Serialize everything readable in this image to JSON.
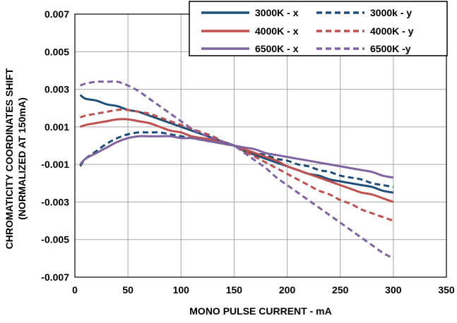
{
  "chart_data": {
    "type": "line",
    "xlabel": "MONO PULSE CURRENT - mA",
    "ylabel_line1": "CHROMATICITY COORDINATES SHIFT",
    "ylabel_line2": "(NORMALIZED AT 150mA)",
    "xlim": [
      0,
      350
    ],
    "ylim": [
      -0.007,
      0.007
    ],
    "x_ticks": [
      0,
      50,
      100,
      150,
      200,
      250,
      300,
      350
    ],
    "x_tick_labels": [
      "0",
      "50",
      "100",
      "150",
      "200",
      "250",
      "300",
      "350"
    ],
    "y_ticks": [
      -0.007,
      -0.005,
      -0.003,
      -0.001,
      0.001,
      0.003,
      0.005,
      0.007
    ],
    "y_tick_labels": [
      "-0.007",
      "-0.005",
      "-0.003",
      "-0.001",
      "0.001",
      "0.003",
      "0.005",
      "0.007"
    ],
    "grid": true,
    "legend_position": "top-right",
    "series": [
      {
        "name": "3000K - x",
        "color": "#1f4e79",
        "dash": "solid",
        "x": [
          5,
          10,
          20,
          30,
          40,
          50,
          60,
          70,
          80,
          90,
          100,
          110,
          120,
          130,
          140,
          150,
          160,
          170,
          180,
          190,
          200,
          210,
          220,
          230,
          240,
          250,
          260,
          270,
          280,
          290,
          300
        ],
        "y": [
          0.0027,
          0.0025,
          0.0024,
          0.0022,
          0.0021,
          0.0019,
          0.0018,
          0.0016,
          0.0014,
          0.0012,
          0.001,
          0.0008,
          0.0006,
          0.0004,
          0.0002,
          0.0,
          -0.0003,
          -0.0005,
          -0.0007,
          -0.0009,
          -0.0011,
          -0.0013,
          -0.0015,
          -0.0016,
          -0.0018,
          -0.0019,
          -0.002,
          -0.0021,
          -0.0022,
          -0.0024,
          -0.0025
        ]
      },
      {
        "name": "3000k - y",
        "color": "#1f4e79",
        "dash": "dashed",
        "x": [
          5,
          10,
          20,
          30,
          40,
          50,
          60,
          70,
          80,
          90,
          100,
          110,
          120,
          130,
          140,
          150,
          160,
          170,
          180,
          190,
          200,
          210,
          220,
          230,
          240,
          250,
          260,
          270,
          280,
          290,
          300
        ],
        "y": [
          -0.0011,
          -0.0007,
          -0.0003,
          0.0001,
          0.0004,
          0.0006,
          0.0007,
          0.0007,
          0.0007,
          0.0006,
          0.0005,
          0.0004,
          0.0003,
          0.0002,
          0.0001,
          0.0,
          -0.0002,
          -0.0004,
          -0.0005,
          -0.0007,
          -0.0008,
          -0.001,
          -0.0011,
          -0.0013,
          -0.0014,
          -0.0016,
          -0.0017,
          -0.0018,
          -0.002,
          -0.0021,
          -0.0022
        ]
      },
      {
        "name": "4000K - x",
        "color": "#c0504d",
        "dash": "solid",
        "x": [
          5,
          10,
          20,
          30,
          40,
          50,
          60,
          70,
          80,
          90,
          100,
          110,
          120,
          130,
          140,
          150,
          160,
          170,
          180,
          190,
          200,
          210,
          220,
          230,
          240,
          250,
          260,
          270,
          280,
          290,
          300
        ],
        "y": [
          0.001,
          0.0011,
          0.0012,
          0.0013,
          0.0014,
          0.0014,
          0.0013,
          0.0012,
          0.001,
          0.0008,
          0.0007,
          0.0005,
          0.0004,
          0.0003,
          0.0001,
          0.0,
          -0.0002,
          -0.0004,
          -0.0006,
          -0.0008,
          -0.0011,
          -0.0013,
          -0.0015,
          -0.0017,
          -0.0019,
          -0.0021,
          -0.0023,
          -0.0025,
          -0.0026,
          -0.0028,
          -0.003
        ]
      },
      {
        "name": "4000K - y",
        "color": "#c0504d",
        "dash": "dashed",
        "x": [
          5,
          10,
          20,
          30,
          40,
          50,
          60,
          70,
          80,
          90,
          100,
          110,
          120,
          130,
          140,
          150,
          160,
          170,
          180,
          190,
          200,
          210,
          220,
          230,
          240,
          250,
          260,
          270,
          280,
          290,
          300
        ],
        "y": [
          0.0015,
          0.0016,
          0.0017,
          0.0018,
          0.0019,
          0.0019,
          0.0018,
          0.0017,
          0.0015,
          0.0013,
          0.0011,
          0.0009,
          0.0007,
          0.0005,
          0.0002,
          0.0,
          -0.0003,
          -0.0006,
          -0.0009,
          -0.0012,
          -0.0015,
          -0.0018,
          -0.0021,
          -0.0024,
          -0.0026,
          -0.0029,
          -0.0031,
          -0.0034,
          -0.0036,
          -0.0038,
          -0.004
        ]
      },
      {
        "name": "6500K - x",
        "color": "#8064a2",
        "dash": "solid",
        "x": [
          5,
          10,
          20,
          30,
          40,
          50,
          60,
          70,
          80,
          90,
          100,
          110,
          120,
          130,
          140,
          150,
          160,
          170,
          180,
          190,
          200,
          210,
          220,
          230,
          240,
          250,
          260,
          270,
          280,
          290,
          300
        ],
        "y": [
          -0.001,
          -0.0007,
          -0.0004,
          -0.0001,
          0.0002,
          0.0004,
          0.0005,
          0.0005,
          0.0005,
          0.0005,
          0.0004,
          0.0004,
          0.0003,
          0.0002,
          0.0001,
          0.0,
          -0.0001,
          -0.0002,
          -0.0004,
          -0.0005,
          -0.0006,
          -0.0007,
          -0.0008,
          -0.0009,
          -0.001,
          -0.0011,
          -0.0012,
          -0.0013,
          -0.0014,
          -0.0016,
          -0.0017
        ]
      },
      {
        "name": "6500K -y",
        "color": "#8064a2",
        "dash": "dashed",
        "x": [
          5,
          10,
          20,
          30,
          40,
          50,
          60,
          70,
          80,
          90,
          100,
          110,
          120,
          130,
          140,
          150,
          160,
          170,
          180,
          190,
          200,
          210,
          220,
          230,
          240,
          250,
          260,
          270,
          280,
          290,
          300
        ],
        "y": [
          0.0032,
          0.0033,
          0.0034,
          0.0034,
          0.0034,
          0.0032,
          0.0029,
          0.0025,
          0.0021,
          0.0017,
          0.0013,
          0.0009,
          0.0006,
          0.0004,
          0.0002,
          0.0,
          -0.0004,
          -0.0008,
          -0.0012,
          -0.0017,
          -0.0021,
          -0.0025,
          -0.0029,
          -0.0033,
          -0.0037,
          -0.0041,
          -0.0045,
          -0.0049,
          -0.0053,
          -0.0057,
          -0.006
        ]
      }
    ]
  }
}
